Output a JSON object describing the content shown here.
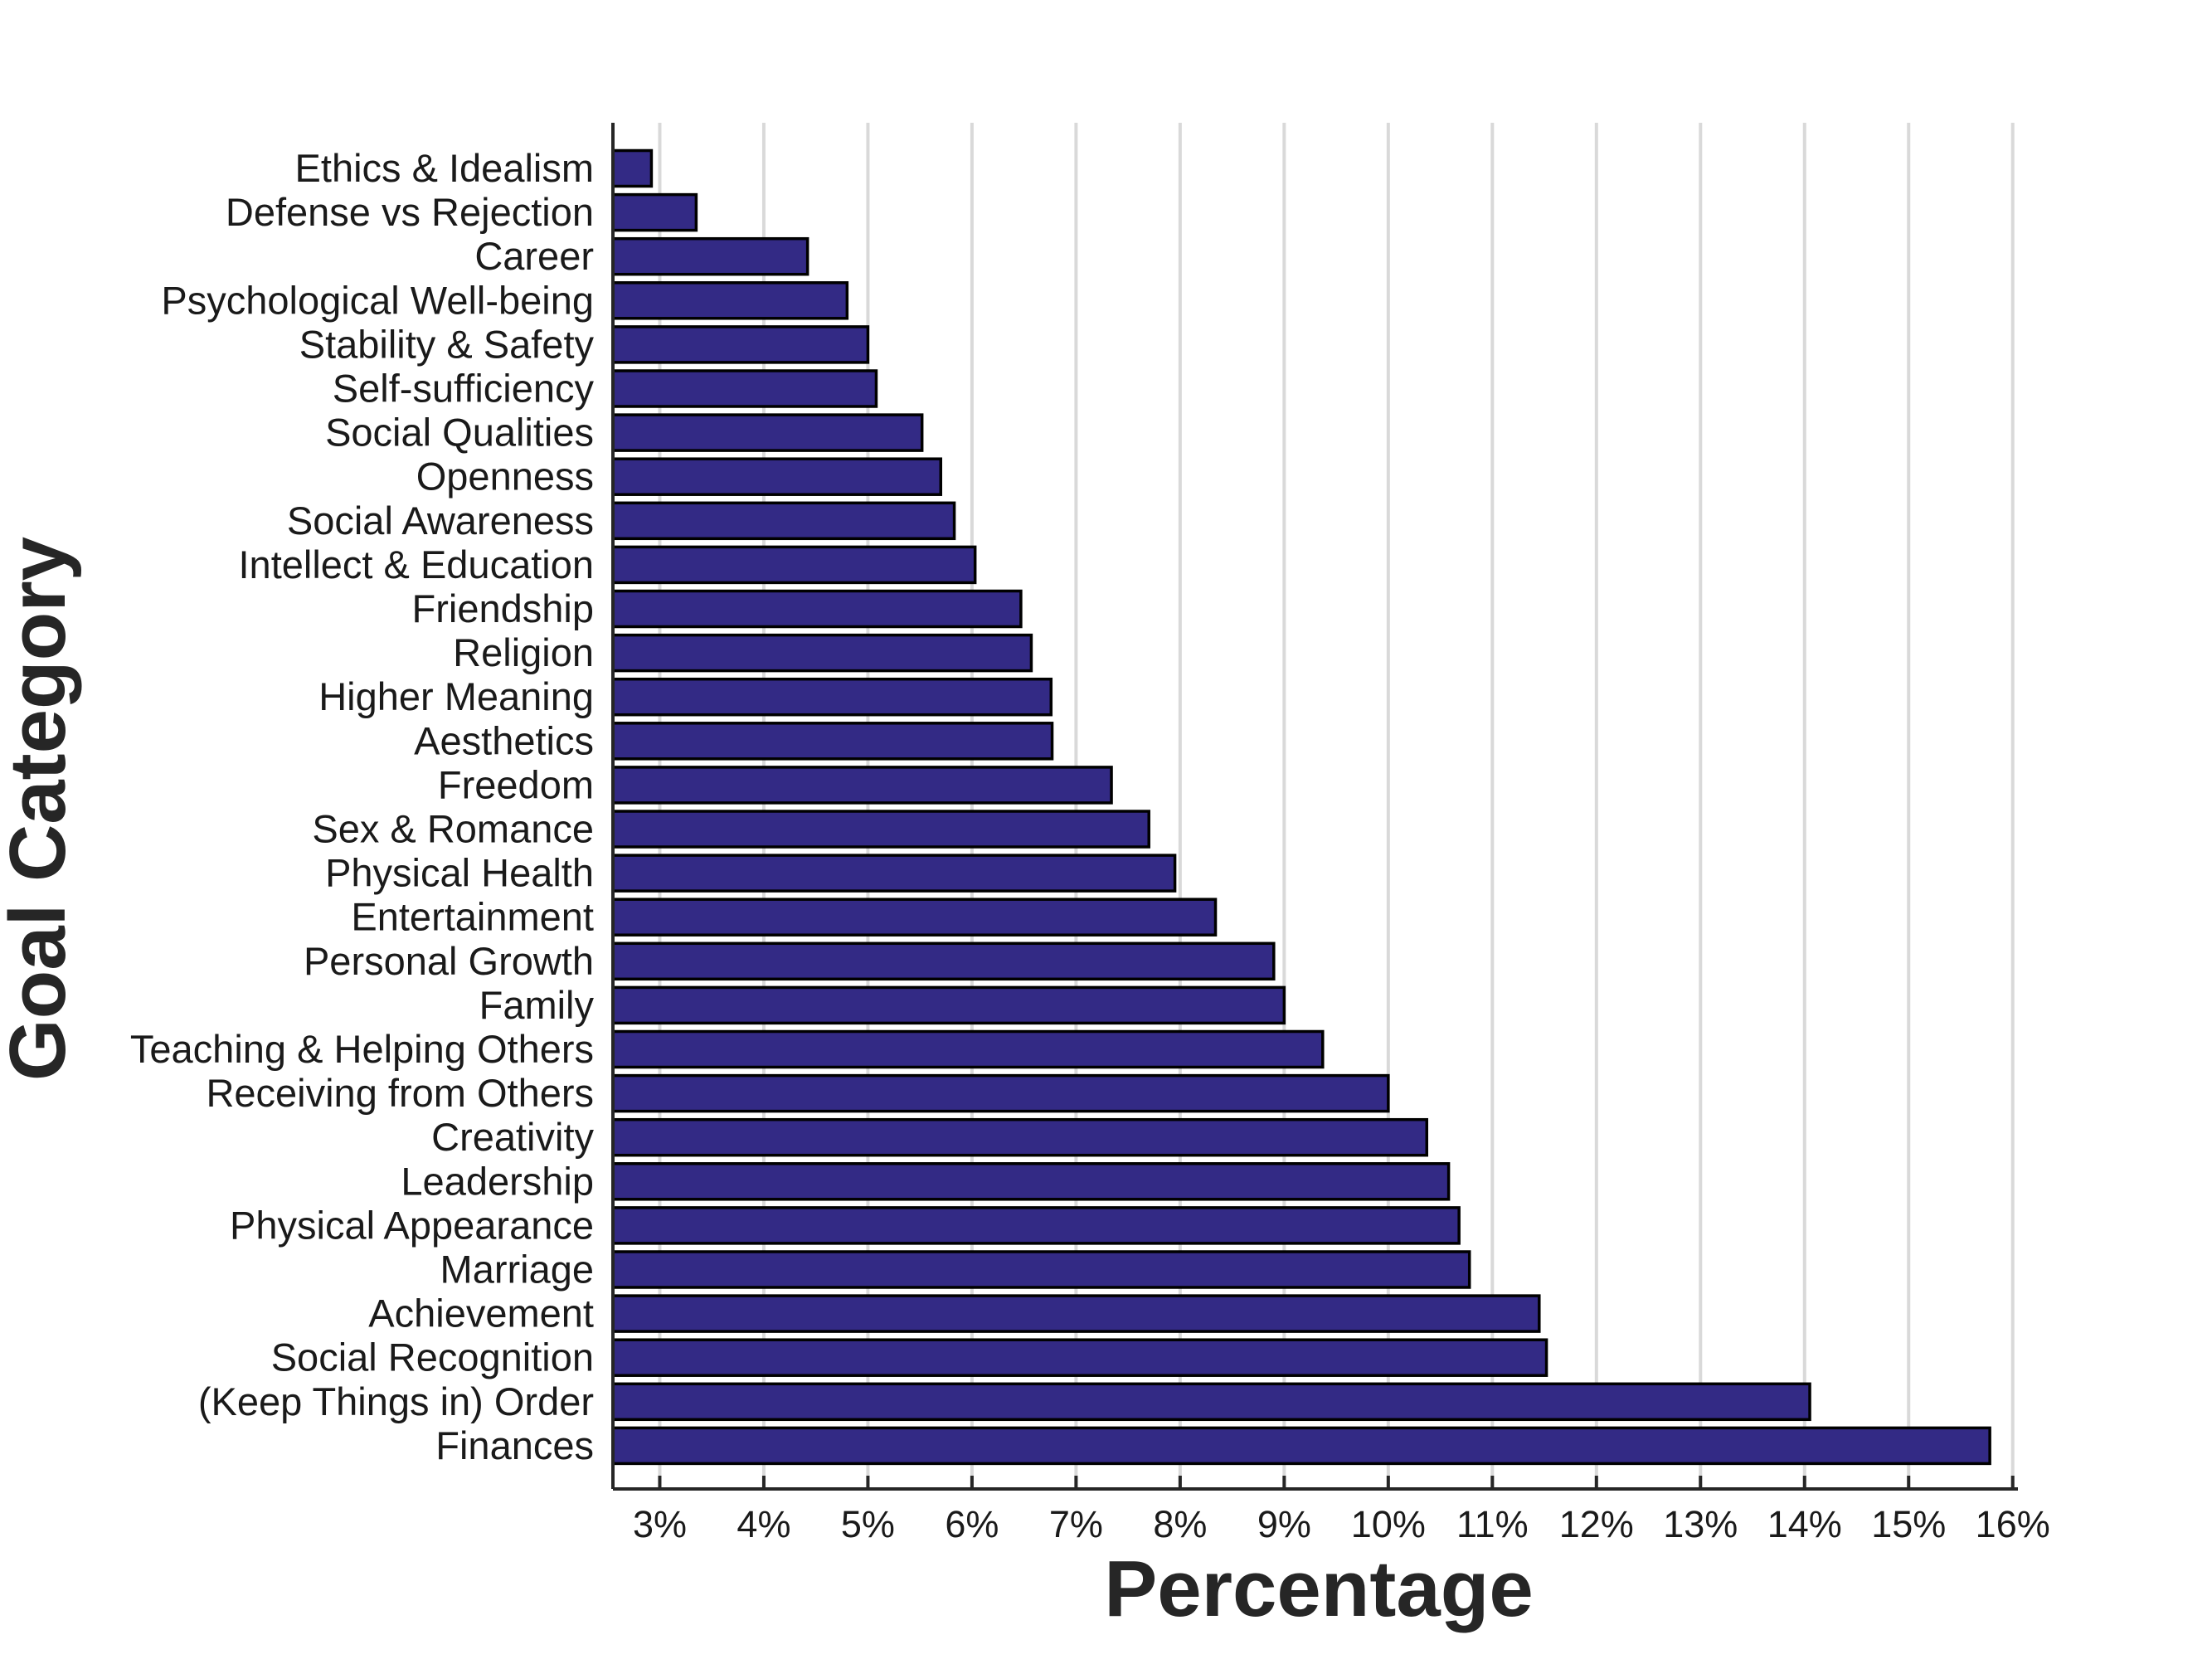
{
  "chart_data": {
    "type": "bar",
    "orientation": "horizontal",
    "categories": [
      "Ethics & Idealism",
      "Defense vs Rejection",
      "Career",
      "Psychological Well-being",
      "Stability & Safety",
      "Self-sufficiency",
      "Social Qualities",
      "Openness",
      "Social Awareness",
      "Intellect & Education",
      "Friendship",
      "Religion",
      "Higher Meaning",
      "Aesthetics",
      "Freedom",
      "Sex & Romance",
      "Physical Health",
      "Entertainment",
      "Personal Growth",
      "Family",
      "Teaching & Helping Others",
      "Receiving from Others",
      "Creativity",
      "Leadership",
      "Physical Appearance",
      "Marriage",
      "Achievement",
      "Social Recognition",
      "(Keep Things in) Order",
      "Finances"
    ],
    "values": [
      2.92,
      3.35,
      4.42,
      4.8,
      5.0,
      5.08,
      5.52,
      5.7,
      5.83,
      6.03,
      6.47,
      6.57,
      6.76,
      6.77,
      7.34,
      7.7,
      7.95,
      8.34,
      8.9,
      9.0,
      9.37,
      10.0,
      10.37,
      10.58,
      10.68,
      10.78,
      11.45,
      11.52,
      14.05,
      15.78
    ],
    "xlim": [
      2.55,
      16.05
    ],
    "xticks": [
      3,
      4,
      5,
      6,
      7,
      8,
      9,
      10,
      11,
      12,
      13,
      14,
      15,
      16
    ],
    "xtick_labels": [
      "3%",
      "4%",
      "5%",
      "6%",
      "7%",
      "8%",
      "9%",
      "10%",
      "11%",
      "12%",
      "13%",
      "14%",
      "15%",
      "16%"
    ],
    "xlabel": "Percentage",
    "ylabel": "Goal Category",
    "title": "",
    "grid": "vertical",
    "bar_color": "#332a85",
    "edge_color": "#000000"
  }
}
